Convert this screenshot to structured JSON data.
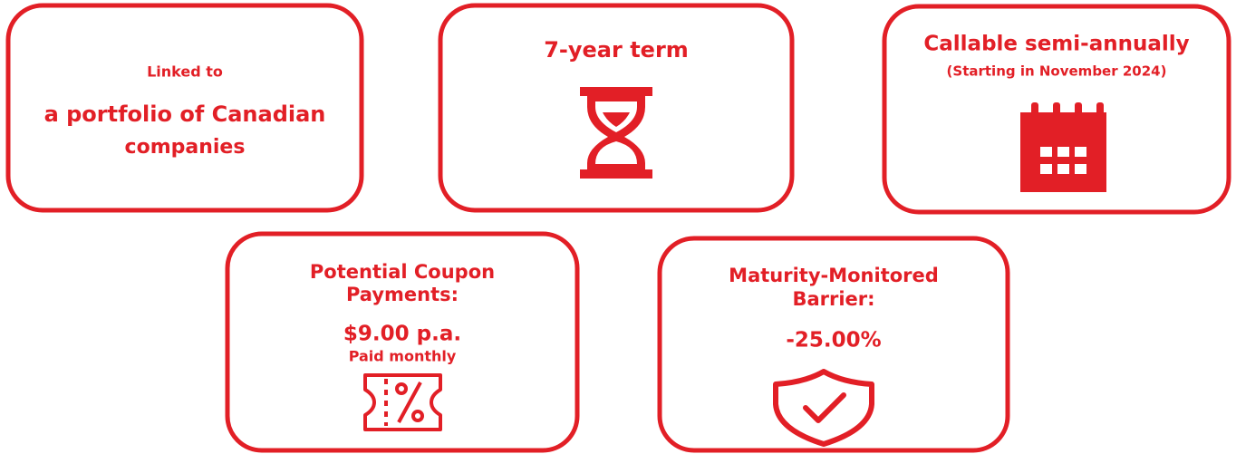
{
  "cards": [
    {
      "lines": [
        "Linked to",
        "a portfolio of Canadian",
        "companies"
      ]
    },
    {
      "lines": [
        "7-year term"
      ]
    },
    {
      "lines": [
        "Callable semi-annually",
        "(Starting in November 2024)"
      ]
    },
    {
      "lines": [
        "Potential Coupon",
        "Payments:",
        "$9.00 p.a.",
        "Paid monthly"
      ]
    },
    {
      "lines": [
        "Maturity-Monitored",
        "Barrier:",
        "-25.00%"
      ]
    }
  ]
}
